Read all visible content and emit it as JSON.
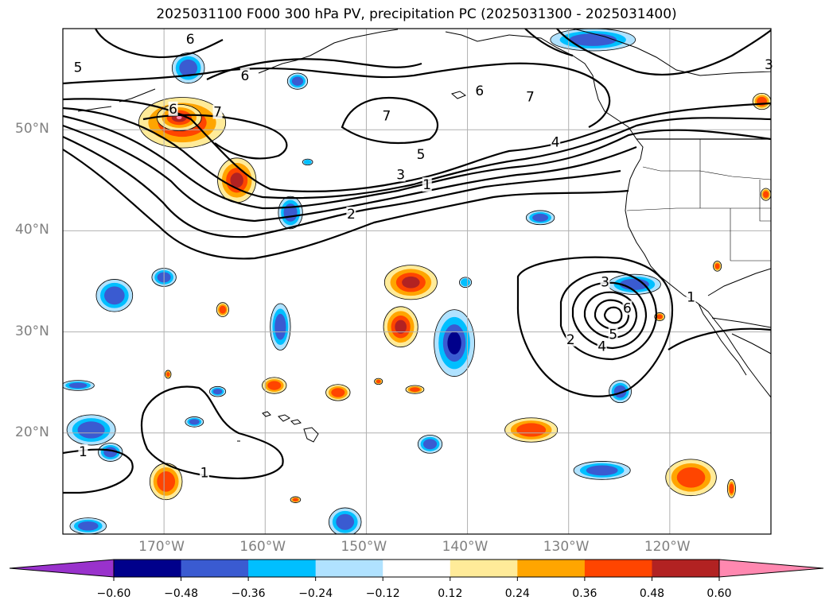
{
  "title": "2025031100 F000 300 hPa PV, precipitation PC (2025031300 - 2025031400)",
  "map": {
    "lon_range": [
      -180,
      -110
    ],
    "lat_range": [
      10,
      60
    ],
    "lon_ticks": [
      {
        "lon": -170,
        "label": "170°W"
      },
      {
        "lon": -160,
        "label": "160°W"
      },
      {
        "lon": -150,
        "label": "150°W"
      },
      {
        "lon": -140,
        "label": "140°W"
      },
      {
        "lon": -130,
        "label": "130°W"
      },
      {
        "lon": -120,
        "label": "120°W"
      }
    ],
    "lat_ticks": [
      {
        "lat": 50,
        "label": "50°N"
      },
      {
        "lat": 40,
        "label": "40°N"
      },
      {
        "lat": 30,
        "label": "30°N"
      },
      {
        "lat": 20,
        "label": "20°N"
      }
    ],
    "grid": true
  },
  "pv_contour_labels": [
    {
      "text": "6",
      "lon": -167.4,
      "lat": 58.9
    },
    {
      "text": "5",
      "lon": -178.5,
      "lat": 56.1
    },
    {
      "text": "6",
      "lon": -162.0,
      "lat": 55.3
    },
    {
      "text": "6",
      "lon": -169.1,
      "lat": 52.0
    },
    {
      "text": "7",
      "lon": -164.7,
      "lat": 51.7
    },
    {
      "text": "7",
      "lon": -148.0,
      "lat": 51.3
    },
    {
      "text": "6",
      "lon": -138.8,
      "lat": 53.8
    },
    {
      "text": "7",
      "lon": -133.8,
      "lat": 53.2
    },
    {
      "text": "3",
      "lon": -110.2,
      "lat": 56.4
    },
    {
      "text": "4",
      "lon": -131.3,
      "lat": 48.7
    },
    {
      "text": "5",
      "lon": -144.6,
      "lat": 47.5
    },
    {
      "text": "3",
      "lon": -146.6,
      "lat": 45.5
    },
    {
      "text": "1",
      "lon": -144.0,
      "lat": 44.5
    },
    {
      "text": "2",
      "lon": -151.5,
      "lat": 41.6
    },
    {
      "text": "3",
      "lon": -126.4,
      "lat": 34.9
    },
    {
      "text": "6",
      "lon": -124.2,
      "lat": 32.3
    },
    {
      "text": "5",
      "lon": -125.6,
      "lat": 29.7
    },
    {
      "text": "4",
      "lon": -126.7,
      "lat": 28.5
    },
    {
      "text": "2",
      "lon": -129.8,
      "lat": 29.2
    },
    {
      "text": "1",
      "lon": -117.9,
      "lat": 33.4
    },
    {
      "text": "1",
      "lon": -178.0,
      "lat": 18.1
    },
    {
      "text": "1",
      "lon": -166.0,
      "lat": 16.0
    }
  ],
  "colorbar": {
    "ticks": [
      "−0.60",
      "−0.48",
      "−0.36",
      "−0.24",
      "−0.12",
      "0.12",
      "0.24",
      "0.36",
      "0.48",
      "0.60"
    ],
    "colors": [
      "#9932cc",
      "#00008b",
      "#3a5bd1",
      "#00bfff",
      "#b0e2ff",
      "#ffffff",
      "#ffeb99",
      "#ffa500",
      "#ff4500",
      "#b22222",
      "#ff88b0"
    ],
    "extend": "both"
  },
  "precip_blobs": [
    {
      "lon": -167.6,
      "lat": 56.1,
      "rx": 1.6,
      "ry": 1.5,
      "value": -0.36
    },
    {
      "lon": -156.8,
      "lat": 54.8,
      "rx": 1.0,
      "ry": 0.8,
      "value": -0.36
    },
    {
      "lon": -127.6,
      "lat": 58.9,
      "rx": 4.2,
      "ry": 1.1,
      "value": -0.36
    },
    {
      "lon": -110.9,
      "lat": 52.8,
      "rx": 0.9,
      "ry": 0.8,
      "value": 0.36
    },
    {
      "lon": -168.2,
      "lat": 50.7,
      "rx": 4.3,
      "ry": 2.5,
      "value": 0.48
    },
    {
      "lon": -168.5,
      "lat": 51.2,
      "rx": 2.2,
      "ry": 1.3,
      "value": 0.6
    },
    {
      "lon": -162.8,
      "lat": 45.0,
      "rx": 1.9,
      "ry": 2.2,
      "value": 0.48
    },
    {
      "lon": -157.5,
      "lat": 41.8,
      "rx": 1.2,
      "ry": 1.6,
      "value": -0.36
    },
    {
      "lon": -155.8,
      "lat": 46.8,
      "rx": 0.5,
      "ry": 0.3,
      "value": -0.24
    },
    {
      "lon": -132.8,
      "lat": 41.3,
      "rx": 1.4,
      "ry": 0.7,
      "value": -0.36
    },
    {
      "lon": -110.5,
      "lat": 43.6,
      "rx": 0.5,
      "ry": 0.6,
      "value": 0.36
    },
    {
      "lon": -145.6,
      "lat": 34.9,
      "rx": 2.6,
      "ry": 1.7,
      "value": 0.48
    },
    {
      "lon": -140.2,
      "lat": 34.9,
      "rx": 0.6,
      "ry": 0.5,
      "value": -0.24
    },
    {
      "lon": -146.6,
      "lat": 30.5,
      "rx": 1.7,
      "ry": 2.0,
      "value": 0.48
    },
    {
      "lon": -141.3,
      "lat": 28.9,
      "rx": 2.0,
      "ry": 3.3,
      "value": -0.48
    },
    {
      "lon": -123.5,
      "lat": 34.7,
      "rx": 2.6,
      "ry": 1.0,
      "value": -0.36
    },
    {
      "lon": -124.9,
      "lat": 24.1,
      "rx": 1.1,
      "ry": 1.1,
      "value": -0.36
    },
    {
      "lon": -121.0,
      "lat": 31.5,
      "rx": 0.5,
      "ry": 0.4,
      "value": 0.36
    },
    {
      "lon": -115.3,
      "lat": 36.5,
      "rx": 0.4,
      "ry": 0.5,
      "value": 0.36
    },
    {
      "lon": -174.9,
      "lat": 33.6,
      "rx": 1.8,
      "ry": 1.6,
      "value": -0.36
    },
    {
      "lon": -170.0,
      "lat": 35.4,
      "rx": 1.2,
      "ry": 0.9,
      "value": -0.36
    },
    {
      "lon": -164.2,
      "lat": 32.2,
      "rx": 0.6,
      "ry": 0.7,
      "value": 0.36
    },
    {
      "lon": -158.5,
      "lat": 30.5,
      "rx": 1.0,
      "ry": 2.3,
      "value": -0.36
    },
    {
      "lon": -169.6,
      "lat": 25.8,
      "rx": 0.3,
      "ry": 0.4,
      "value": 0.36
    },
    {
      "lon": -178.5,
      "lat": 24.7,
      "rx": 1.6,
      "ry": 0.5,
      "value": -0.36
    },
    {
      "lon": -164.7,
      "lat": 24.1,
      "rx": 0.8,
      "ry": 0.5,
      "value": -0.36
    },
    {
      "lon": -159.1,
      "lat": 24.7,
      "rx": 1.2,
      "ry": 0.8,
      "value": 0.36
    },
    {
      "lon": -152.8,
      "lat": 24.0,
      "rx": 1.2,
      "ry": 0.8,
      "value": 0.36
    },
    {
      "lon": -148.8,
      "lat": 25.1,
      "rx": 0.4,
      "ry": 0.3,
      "value": 0.36
    },
    {
      "lon": -145.2,
      "lat": 24.3,
      "rx": 0.9,
      "ry": 0.4,
      "value": 0.36
    },
    {
      "lon": -177.2,
      "lat": 20.3,
      "rx": 2.4,
      "ry": 1.5,
      "value": -0.36
    },
    {
      "lon": -175.3,
      "lat": 18.1,
      "rx": 1.2,
      "ry": 0.9,
      "value": -0.36
    },
    {
      "lon": -167.0,
      "lat": 21.1,
      "rx": 0.9,
      "ry": 0.5,
      "value": -0.36
    },
    {
      "lon": -143.7,
      "lat": 18.9,
      "rx": 1.2,
      "ry": 0.9,
      "value": -0.36
    },
    {
      "lon": -133.7,
      "lat": 20.3,
      "rx": 2.6,
      "ry": 1.2,
      "value": 0.36
    },
    {
      "lon": -169.8,
      "lat": 15.2,
      "rx": 1.6,
      "ry": 1.8,
      "value": 0.36
    },
    {
      "lon": -157.0,
      "lat": 13.4,
      "rx": 0.5,
      "ry": 0.3,
      "value": 0.36
    },
    {
      "lon": -152.1,
      "lat": 11.2,
      "rx": 1.6,
      "ry": 1.4,
      "value": -0.36
    },
    {
      "lon": -177.5,
      "lat": 10.8,
      "rx": 1.8,
      "ry": 0.8,
      "value": -0.36
    },
    {
      "lon": -126.7,
      "lat": 16.3,
      "rx": 2.8,
      "ry": 0.9,
      "value": -0.36
    },
    {
      "lon": -117.9,
      "lat": 15.6,
      "rx": 2.5,
      "ry": 1.8,
      "value": 0.36
    },
    {
      "lon": -113.9,
      "lat": 14.5,
      "rx": 0.4,
      "ry": 0.9,
      "value": 0.36
    }
  ]
}
